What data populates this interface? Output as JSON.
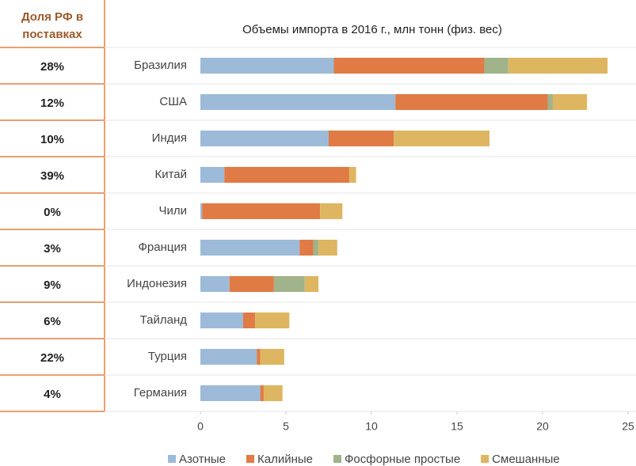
{
  "chart_data": {
    "type": "stacked_barh",
    "title": "Объемы импорта в 2016 г., млн тонн (физ. вес)",
    "share_header": "Доля РФ в поставках",
    "categories": [
      "Бразилия",
      "США",
      "Индия",
      "Китай",
      "Чили",
      "Франция",
      "Индонезия",
      "Тайланд",
      "Турция",
      "Германия"
    ],
    "shares": [
      "28%",
      "12%",
      "10%",
      "39%",
      "0%",
      "3%",
      "9%",
      "6%",
      "22%",
      "4%"
    ],
    "series": [
      {
        "name": "Азотные",
        "color": "#9dbbd9",
        "values": [
          7.8,
          11.4,
          7.5,
          1.4,
          0.1,
          5.8,
          1.7,
          2.5,
          3.3,
          3.5
        ]
      },
      {
        "name": "Калийные",
        "color": "#e07b45",
        "values": [
          8.8,
          8.9,
          3.8,
          7.3,
          6.9,
          0.8,
          2.6,
          0.7,
          0.2,
          0.2
        ]
      },
      {
        "name": "Фосфорные простые",
        "color": "#a0b38b",
        "values": [
          1.4,
          0.3,
          0,
          0,
          0,
          0.3,
          1.8,
          0,
          0,
          0
        ]
      },
      {
        "name": "Смешанные",
        "color": "#deb661",
        "values": [
          5.8,
          2.0,
          5.6,
          0.4,
          1.3,
          1.1,
          0.8,
          2.0,
          1.4,
          1.1
        ]
      }
    ],
    "xlim": [
      0,
      25
    ],
    "xticks": [
      0,
      5,
      10,
      15,
      20,
      25
    ]
  }
}
